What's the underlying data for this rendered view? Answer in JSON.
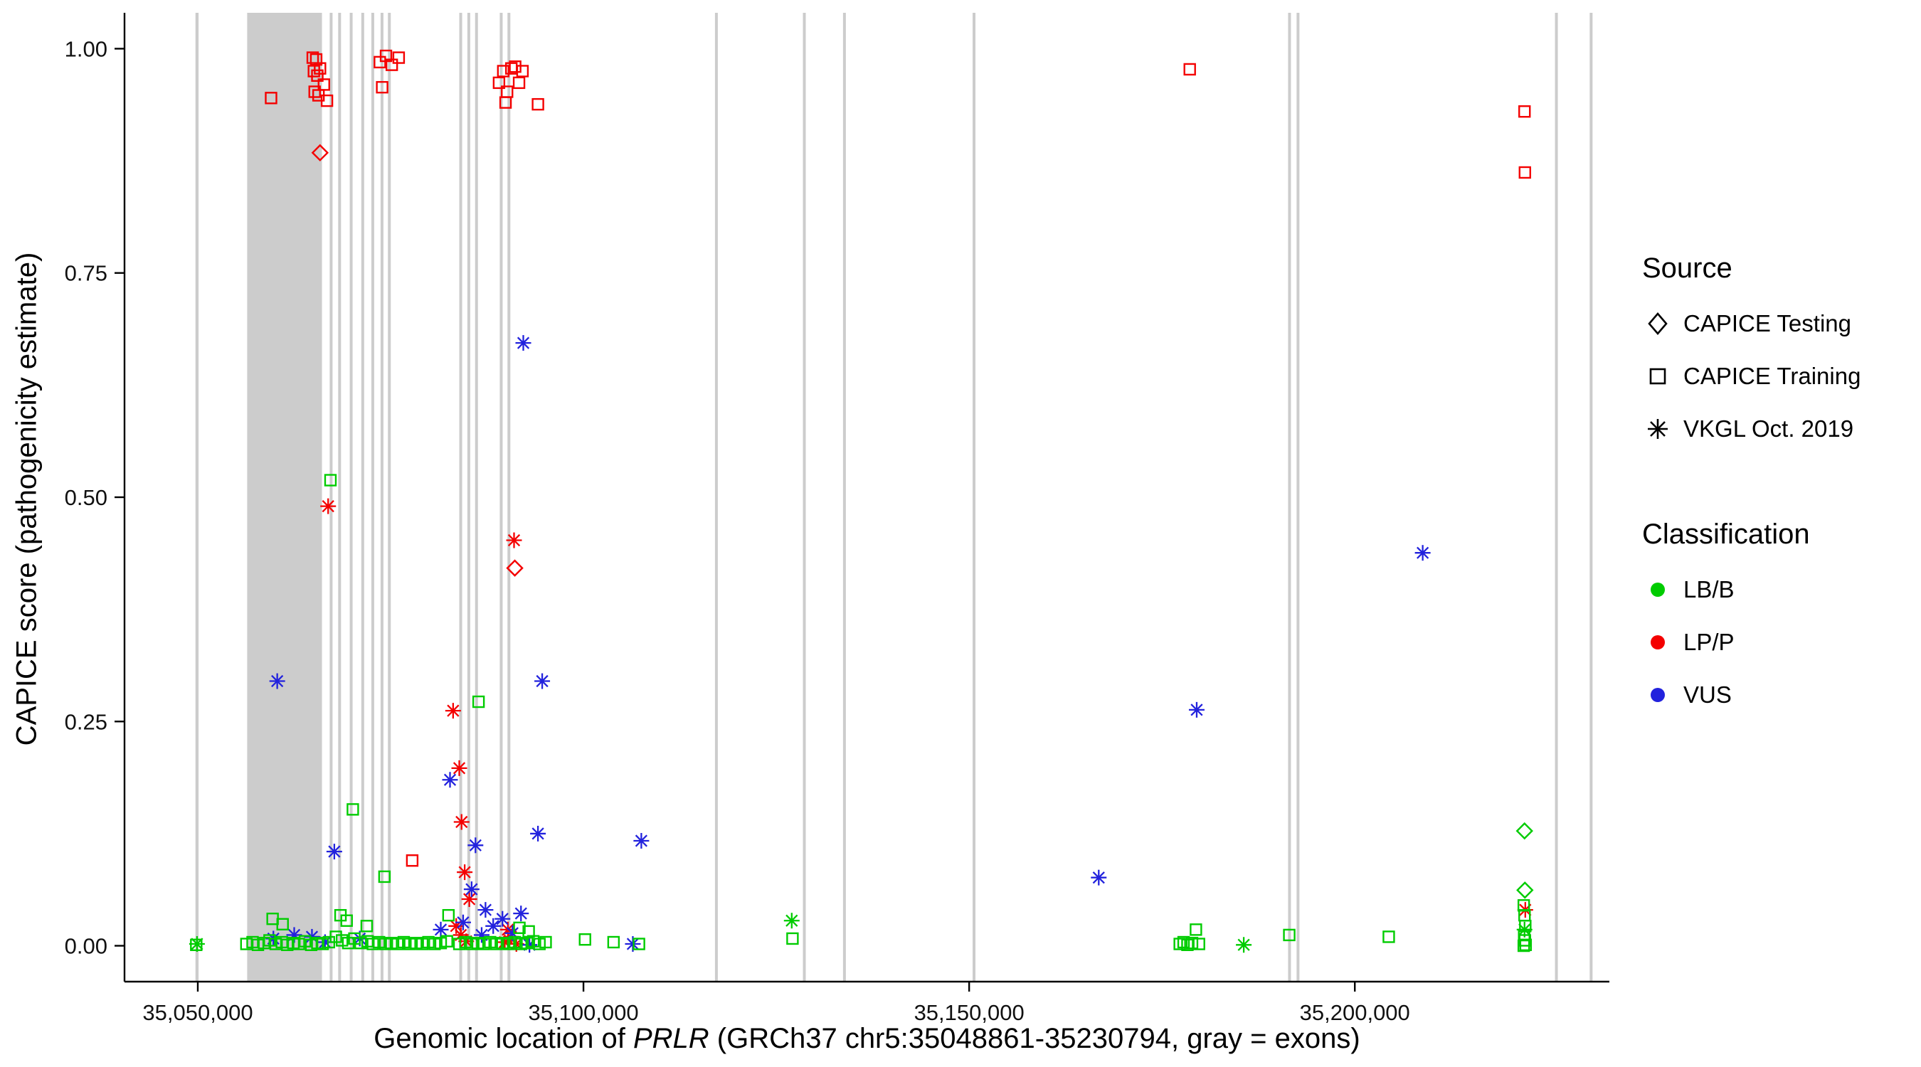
{
  "legend": {
    "source": {
      "title": "Source",
      "items": [
        {
          "label": "CAPICE Testing",
          "shape": "diamond"
        },
        {
          "label": "CAPICE Training",
          "shape": "square"
        },
        {
          "label": "VKGL Oct. 2019",
          "shape": "asterisk"
        }
      ]
    },
    "classification": {
      "title": "Classification",
      "items": [
        {
          "label": "LB/B",
          "color": "#00CC00"
        },
        {
          "label": "LP/P",
          "color": "#F40000"
        },
        {
          "label": "VUS",
          "color": "#2222DD"
        }
      ]
    }
  },
  "chart_data": {
    "type": "scatter",
    "title": "",
    "ylabel": "CAPICE score (pathogenicity estimate)",
    "xlabel": "Genomic location of PRLR (GRCh37 chr5:35048861-35230794, gray = exons)",
    "xlabel_parts": {
      "pre": "Genomic location of ",
      "gene": "PRLR",
      "post": " (GRCh37 chr5:35048861-35230794, gray = exons)"
    },
    "xlim": [
      35040500,
      35233000
    ],
    "ylim": [
      -0.04,
      1.04
    ],
    "x_ticks": [
      {
        "value": 35050000,
        "label": "35,050,000"
      },
      {
        "value": 35100000,
        "label": "35,100,000"
      },
      {
        "value": 35150000,
        "label": "35,150,000"
      },
      {
        "value": 35200000,
        "label": "35,200,000"
      }
    ],
    "y_ticks": [
      {
        "value": 0.0,
        "label": "0.00"
      },
      {
        "value": 0.25,
        "label": "0.25"
      },
      {
        "value": 0.5,
        "label": "0.50"
      },
      {
        "value": 0.75,
        "label": "0.75"
      },
      {
        "value": 1.0,
        "label": "1.00"
      }
    ],
    "grid": false,
    "legend_position": "right",
    "panel_background": "#FFFFFF",
    "exon_color": "#CCCCCC",
    "exons": [
      [
        35049700,
        35050100
      ],
      [
        35056400,
        35066100
      ],
      [
        35067100,
        35067450
      ],
      [
        35068200,
        35068550
      ],
      [
        35069700,
        35070050
      ],
      [
        35071200,
        35071550
      ],
      [
        35072500,
        35072850
      ],
      [
        35073700,
        35074050
      ],
      [
        35074650,
        35075000
      ],
      [
        35083900,
        35084250
      ],
      [
        35084950,
        35085300
      ],
      [
        35085950,
        35086300
      ],
      [
        35089150,
        35089500
      ],
      [
        35090150,
        35090500
      ],
      [
        35117050,
        35117400
      ],
      [
        35128450,
        35128800
      ],
      [
        35133650,
        35134000
      ],
      [
        35150450,
        35150800
      ],
      [
        35191350,
        35191700
      ],
      [
        35192450,
        35192800
      ],
      [
        35225950,
        35226300
      ],
      [
        35230450,
        35230794
      ]
    ],
    "source_codes": {
      "T": "CAPICE Testing",
      "R": "CAPICE Training",
      "V": "VKGL Oct. 2019"
    },
    "class_codes": {
      "B": "LB/B",
      "P": "LP/P",
      "U": "VUS"
    },
    "shapes": {
      "CAPICE Testing": "diamond",
      "CAPICE Training": "square",
      "VKGL Oct. 2019": "asterisk"
    },
    "colors": {
      "LB/B": "#00CC00",
      "LP/P": "#F40000",
      "VUS": "#2222DD"
    },
    "points": [
      [
        35059500,
        0.945,
        "R",
        "P"
      ],
      [
        35064900,
        0.99,
        "R",
        "P"
      ],
      [
        35065350,
        0.988,
        "R",
        "P"
      ],
      [
        35065050,
        0.975,
        "R",
        "P"
      ],
      [
        35065500,
        0.97,
        "R",
        "P"
      ],
      [
        35065850,
        0.978,
        "R",
        "P"
      ],
      [
        35065150,
        0.952,
        "R",
        "P"
      ],
      [
        35065650,
        0.948,
        "R",
        "P"
      ],
      [
        35066350,
        0.96,
        "R",
        "P"
      ],
      [
        35066750,
        0.942,
        "R",
        "P"
      ],
      [
        35073600,
        0.985,
        "R",
        "P"
      ],
      [
        35074400,
        0.992,
        "R",
        "P"
      ],
      [
        35075150,
        0.982,
        "R",
        "P"
      ],
      [
        35076050,
        0.99,
        "R",
        "P"
      ],
      [
        35073900,
        0.957,
        "R",
        "P"
      ],
      [
        35089050,
        0.962,
        "R",
        "P"
      ],
      [
        35089600,
        0.975,
        "R",
        "P"
      ],
      [
        35090100,
        0.952,
        "R",
        "P"
      ],
      [
        35090650,
        0.978,
        "R",
        "P"
      ],
      [
        35091150,
        0.98,
        "R",
        "P"
      ],
      [
        35091650,
        0.962,
        "R",
        "P"
      ],
      [
        35092100,
        0.975,
        "R",
        "P"
      ],
      [
        35089900,
        0.94,
        "R",
        "P"
      ],
      [
        35094100,
        0.938,
        "R",
        "P"
      ],
      [
        35178600,
        0.977,
        "R",
        "P"
      ],
      [
        35222000,
        0.93,
        "R",
        "P"
      ],
      [
        35222050,
        0.862,
        "R",
        "P"
      ],
      [
        35077800,
        0.095,
        "R",
        "P"
      ],
      [
        35065850,
        0.884,
        "T",
        "P"
      ],
      [
        35091100,
        0.421,
        "T",
        "P"
      ],
      [
        35066900,
        0.49,
        "V",
        "P"
      ],
      [
        35091000,
        0.452,
        "V",
        "P"
      ],
      [
        35083100,
        0.262,
        "V",
        "P"
      ],
      [
        35083900,
        0.198,
        "V",
        "P"
      ],
      [
        35084200,
        0.138,
        "V",
        "P"
      ],
      [
        35084600,
        0.082,
        "V",
        "P"
      ],
      [
        35085200,
        0.052,
        "V",
        "P"
      ],
      [
        35083500,
        0.022,
        "V",
        "P"
      ],
      [
        35084100,
        0.012,
        "V",
        "P"
      ],
      [
        35084800,
        0.005,
        "V",
        "P"
      ],
      [
        35089800,
        0.004,
        "V",
        "P"
      ],
      [
        35090600,
        0.01,
        "V",
        "P"
      ],
      [
        35090200,
        0.018,
        "V",
        "P"
      ],
      [
        35091300,
        0.002,
        "V",
        "P"
      ],
      [
        35222100,
        0.04,
        "V",
        "P"
      ],
      [
        35092200,
        0.672,
        "V",
        "U"
      ],
      [
        35060300,
        0.295,
        "V",
        "U"
      ],
      [
        35094650,
        0.295,
        "V",
        "U"
      ],
      [
        35179500,
        0.263,
        "V",
        "U"
      ],
      [
        35208800,
        0.438,
        "V",
        "U"
      ],
      [
        35067700,
        0.105,
        "V",
        "U"
      ],
      [
        35082700,
        0.185,
        "V",
        "U"
      ],
      [
        35086000,
        0.112,
        "V",
        "U"
      ],
      [
        35094100,
        0.125,
        "V",
        "U"
      ],
      [
        35107500,
        0.117,
        "V",
        "U"
      ],
      [
        35166800,
        0.076,
        "V",
        "U"
      ],
      [
        35085500,
        0.063,
        "V",
        "U"
      ],
      [
        35087300,
        0.04,
        "V",
        "U"
      ],
      [
        35089500,
        0.03,
        "V",
        "U"
      ],
      [
        35091900,
        0.036,
        "V",
        "U"
      ],
      [
        35084400,
        0.026,
        "V",
        "U"
      ],
      [
        35088300,
        0.022,
        "V",
        "U"
      ],
      [
        35086800,
        0.012,
        "V",
        "U"
      ],
      [
        35081500,
        0.018,
        "V",
        "U"
      ],
      [
        35059800,
        0.008,
        "V",
        "U"
      ],
      [
        35062500,
        0.012,
        "V",
        "U"
      ],
      [
        35064800,
        0.01,
        "V",
        "U"
      ],
      [
        35066500,
        0.004,
        "V",
        "U"
      ],
      [
        35071000,
        0.008,
        "V",
        "U"
      ],
      [
        35090800,
        0.014,
        "V",
        "U"
      ],
      [
        35106400,
        0.002,
        "V",
        "U"
      ],
      [
        35093000,
        0.001,
        "V",
        "U"
      ],
      [
        35067200,
        0.519,
        "R",
        "B"
      ],
      [
        35086400,
        0.272,
        "R",
        "B"
      ],
      [
        35070100,
        0.152,
        "R",
        "B"
      ],
      [
        35074200,
        0.077,
        "R",
        "B"
      ],
      [
        35059700,
        0.03,
        "R",
        "B"
      ],
      [
        35061000,
        0.024,
        "R",
        "B"
      ],
      [
        35068500,
        0.034,
        "R",
        "B"
      ],
      [
        35069300,
        0.028,
        "R",
        "B"
      ],
      [
        35071900,
        0.022,
        "R",
        "B"
      ],
      [
        35082500,
        0.034,
        "R",
        "B"
      ],
      [
        35091700,
        0.02,
        "R",
        "B"
      ],
      [
        35092900,
        0.016,
        "R",
        "B"
      ],
      [
        35049800,
        0.001,
        "R",
        "B"
      ],
      [
        35056300,
        0.002,
        "R",
        "B"
      ],
      [
        35057100,
        0.004,
        "R",
        "B"
      ],
      [
        35057800,
        0.001,
        "R",
        "B"
      ],
      [
        35058600,
        0.003,
        "R",
        "B"
      ],
      [
        35059300,
        0.006,
        "R",
        "B"
      ],
      [
        35060100,
        0.002,
        "R",
        "B"
      ],
      [
        35060900,
        0.004,
        "R",
        "B"
      ],
      [
        35061600,
        0.001,
        "R",
        "B"
      ],
      [
        35062400,
        0.003,
        "R",
        "B"
      ],
      [
        35063100,
        0.002,
        "R",
        "B"
      ],
      [
        35063900,
        0.005,
        "R",
        "B"
      ],
      [
        35064700,
        0.001,
        "R",
        "B"
      ],
      [
        35065500,
        0.003,
        "R",
        "B"
      ],
      [
        35066200,
        0.002,
        "R",
        "B"
      ],
      [
        35067000,
        0.004,
        "R",
        "B"
      ],
      [
        35067900,
        0.01,
        "R",
        "B"
      ],
      [
        35068700,
        0.006,
        "R",
        "B"
      ],
      [
        35069500,
        0.003,
        "R",
        "B"
      ],
      [
        35070300,
        0.008,
        "R",
        "B"
      ],
      [
        35071100,
        0.003,
        "R",
        "B"
      ],
      [
        35072000,
        0.005,
        "R",
        "B"
      ],
      [
        35072700,
        0.002,
        "R",
        "B"
      ],
      [
        35073500,
        0.004,
        "R",
        "B"
      ],
      [
        35074300,
        0.002,
        "R",
        "B"
      ],
      [
        35075100,
        0.003,
        "R",
        "B"
      ],
      [
        35075900,
        0.002,
        "R",
        "B"
      ],
      [
        35076700,
        0.004,
        "R",
        "B"
      ],
      [
        35077500,
        0.002,
        "R",
        "B"
      ],
      [
        35078300,
        0.003,
        "R",
        "B"
      ],
      [
        35079100,
        0.002,
        "R",
        "B"
      ],
      [
        35079900,
        0.004,
        "R",
        "B"
      ],
      [
        35080700,
        0.002,
        "R",
        "B"
      ],
      [
        35081500,
        0.003,
        "R",
        "B"
      ],
      [
        35082300,
        0.005,
        "R",
        "B"
      ],
      [
        35083900,
        0.002,
        "R",
        "B"
      ],
      [
        35084700,
        0.004,
        "R",
        "B"
      ],
      [
        35085500,
        0.002,
        "R",
        "B"
      ],
      [
        35086300,
        0.003,
        "R",
        "B"
      ],
      [
        35087100,
        0.002,
        "R",
        "B"
      ],
      [
        35087900,
        0.004,
        "R",
        "B"
      ],
      [
        35088700,
        0.002,
        "R",
        "B"
      ],
      [
        35089500,
        0.003,
        "R",
        "B"
      ],
      [
        35090300,
        0.002,
        "R",
        "B"
      ],
      [
        35091100,
        0.004,
        "R",
        "B"
      ],
      [
        35091900,
        0.002,
        "R",
        "B"
      ],
      [
        35092700,
        0.003,
        "R",
        "B"
      ],
      [
        35093500,
        0.005,
        "R",
        "B"
      ],
      [
        35094300,
        0.002,
        "R",
        "B"
      ],
      [
        35095100,
        0.004,
        "R",
        "B"
      ],
      [
        35100200,
        0.007,
        "R",
        "B"
      ],
      [
        35103900,
        0.004,
        "R",
        "B"
      ],
      [
        35107200,
        0.002,
        "R",
        "B"
      ],
      [
        35127100,
        0.008,
        "R",
        "B"
      ],
      [
        35177300,
        0.002,
        "R",
        "B"
      ],
      [
        35177800,
        0.004,
        "R",
        "B"
      ],
      [
        35178300,
        0.001,
        "R",
        "B"
      ],
      [
        35178900,
        0.003,
        "R",
        "B"
      ],
      [
        35179400,
        0.018,
        "R",
        "B"
      ],
      [
        35179800,
        0.002,
        "R",
        "B"
      ],
      [
        35191500,
        0.012,
        "R",
        "B"
      ],
      [
        35204400,
        0.01,
        "R",
        "B"
      ],
      [
        35221900,
        0.045,
        "R",
        "B"
      ],
      [
        35222000,
        0.034,
        "R",
        "B"
      ],
      [
        35222100,
        0.022,
        "R",
        "B"
      ],
      [
        35221950,
        0.012,
        "R",
        "B"
      ],
      [
        35222050,
        0.006,
        "R",
        "B"
      ],
      [
        35222150,
        0.001,
        "R",
        "B"
      ],
      [
        35221900,
        0.0,
        "R",
        "B"
      ],
      [
        35049900,
        0.002,
        "V",
        "B"
      ],
      [
        35127000,
        0.028,
        "V",
        "B"
      ],
      [
        35185600,
        0.001,
        "V",
        "B"
      ],
      [
        35222000,
        0.018,
        "V",
        "B"
      ],
      [
        35222000,
        0.128,
        "T",
        "B"
      ],
      [
        35222050,
        0.062,
        "T",
        "B"
      ]
    ]
  }
}
